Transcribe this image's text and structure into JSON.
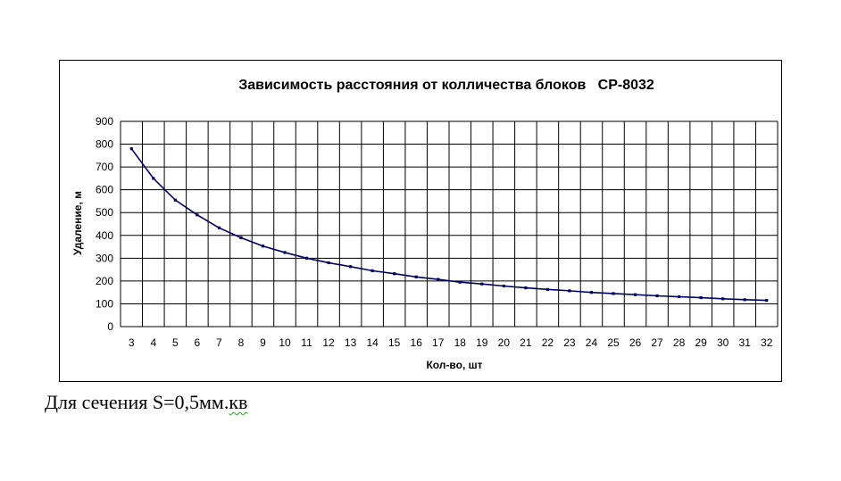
{
  "chart_data": {
    "type": "line",
    "title": "Зависимость расстояния от колличества блоков   СР-8032",
    "xlabel": "Кол-во, шт",
    "ylabel": "Удаление, м",
    "x": [
      3,
      4,
      5,
      6,
      7,
      8,
      9,
      10,
      11,
      12,
      13,
      14,
      15,
      16,
      17,
      18,
      19,
      20,
      21,
      22,
      23,
      24,
      25,
      26,
      27,
      28,
      29,
      30,
      31,
      32
    ],
    "series": [
      {
        "values": [
          780,
          650,
          555,
          490,
          433,
          390,
          353,
          325,
          300,
          280,
          263,
          245,
          232,
          218,
          207,
          195,
          187,
          178,
          170,
          163,
          157,
          150,
          145,
          140,
          135,
          131,
          127,
          122,
          118,
          115
        ],
        "color": "#000066"
      }
    ],
    "xlim": [
      3,
      32
    ],
    "ylim": [
      0,
      900
    ],
    "yticks": [
      0,
      100,
      200,
      300,
      400,
      500,
      600,
      700,
      800,
      900
    ],
    "grid": true,
    "legend": "none"
  },
  "caption": {
    "main": "Для сечения S=0,5мм.",
    "underlined": "кв"
  }
}
